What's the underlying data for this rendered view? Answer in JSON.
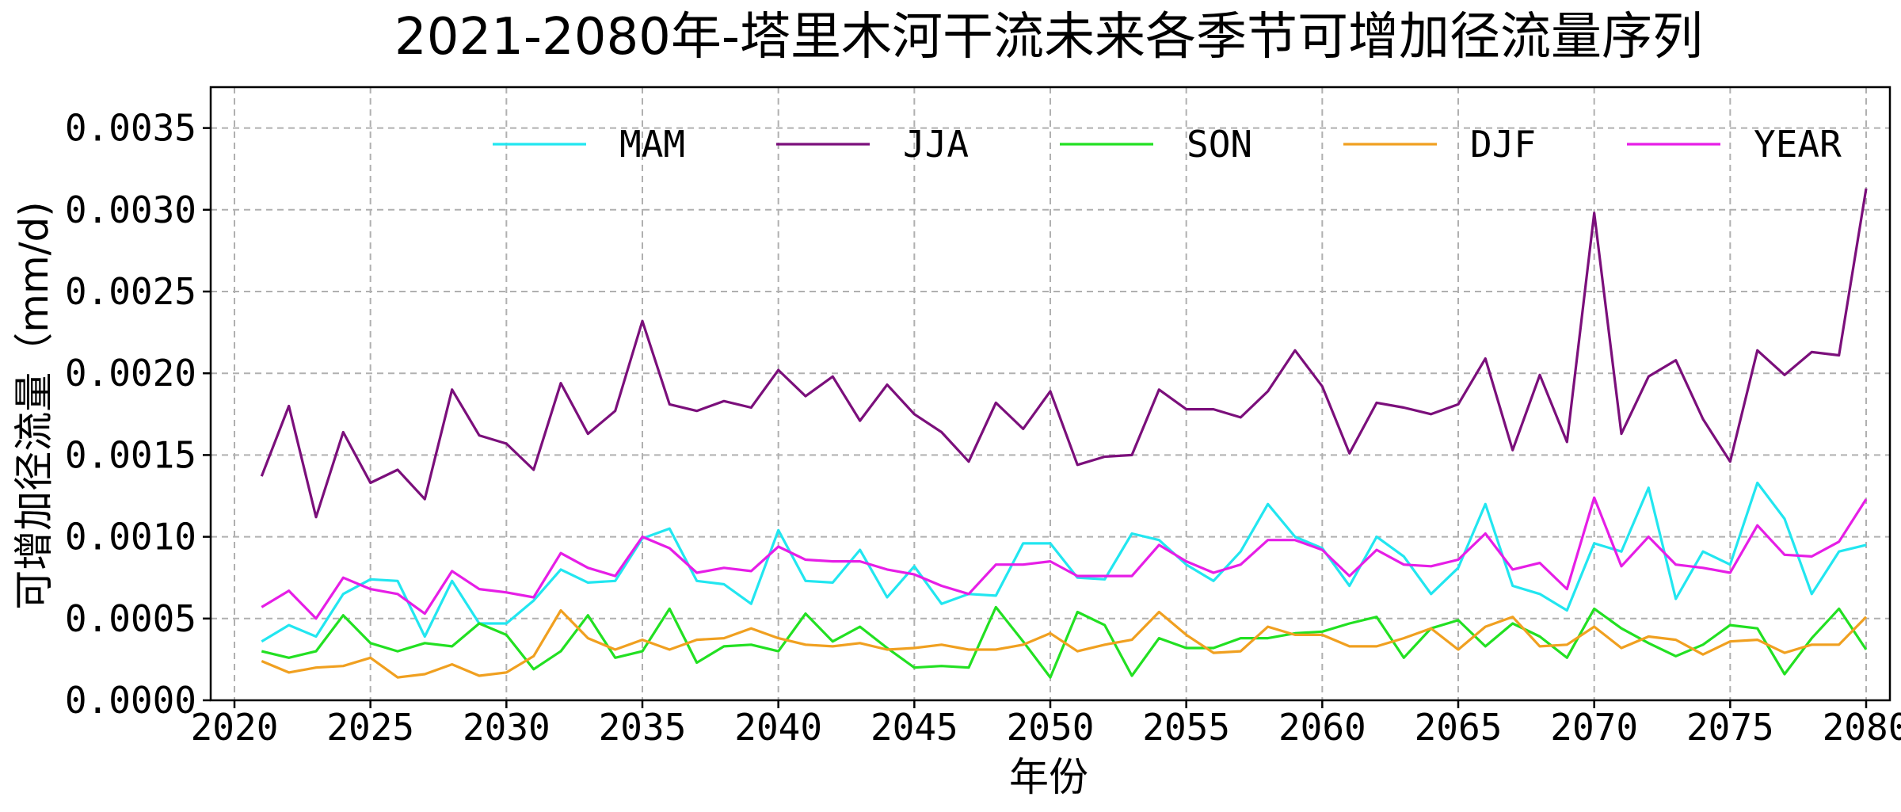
{
  "chart_data": {
    "type": "line",
    "title": "2021-2080年-塔里木河干流未来各季节可增加径流量序列",
    "xlabel": "年份",
    "ylabel": "可增加径流量（mm/d)",
    "xlim": [
      2020,
      2080
    ],
    "ylim": [
      0,
      0.00375
    ],
    "x_ticks": [
      "2020",
      "2025",
      "2030",
      "2035",
      "2040",
      "2045",
      "2050",
      "2055",
      "2060",
      "2065",
      "2070",
      "2075",
      "2080"
    ],
    "y_ticks": [
      "0.0000",
      "0.0005",
      "0.0010",
      "0.0015",
      "0.0020",
      "0.0025",
      "0.0030",
      "0.0035"
    ],
    "grid": true,
    "legend_position": "top",
    "x": [
      2021,
      2022,
      2023,
      2024,
      2025,
      2026,
      2027,
      2028,
      2029,
      2030,
      2031,
      2032,
      2033,
      2034,
      2035,
      2036,
      2037,
      2038,
      2039,
      2040,
      2041,
      2042,
      2043,
      2044,
      2045,
      2046,
      2047,
      2048,
      2049,
      2050,
      2051,
      2052,
      2053,
      2054,
      2055,
      2056,
      2057,
      2058,
      2059,
      2060,
      2061,
      2062,
      2063,
      2064,
      2065,
      2066,
      2067,
      2068,
      2069,
      2070,
      2071,
      2072,
      2073,
      2074,
      2075,
      2076,
      2077,
      2078,
      2079,
      2080
    ],
    "series": [
      {
        "name": "MAM",
        "color": "#22e6f0",
        "values": [
          0.00036,
          0.00046,
          0.00039,
          0.00065,
          0.00074,
          0.00073,
          0.00039,
          0.00073,
          0.00047,
          0.00047,
          0.00061,
          0.0008,
          0.00072,
          0.00073,
          0.00099,
          0.00105,
          0.00073,
          0.00071,
          0.00059,
          0.00104,
          0.00073,
          0.00072,
          0.00092,
          0.00063,
          0.00082,
          0.00059,
          0.00065,
          0.00064,
          0.00096,
          0.00096,
          0.00075,
          0.00074,
          0.00102,
          0.00098,
          0.00083,
          0.00073,
          0.00091,
          0.0012,
          0.001,
          0.00093,
          0.0007,
          0.001,
          0.00088,
          0.00065,
          0.00081,
          0.0012,
          0.0007,
          0.00065,
          0.00055,
          0.00096,
          0.00091,
          0.0013,
          0.00062,
          0.00091,
          0.00083,
          0.00133,
          0.00111,
          0.00065,
          0.00091,
          0.00095
        ]
      },
      {
        "name": "JJA",
        "color": "#7b0f7b",
        "values": [
          0.00137,
          0.0018,
          0.00112,
          0.00164,
          0.00133,
          0.00141,
          0.00123,
          0.0019,
          0.00162,
          0.00157,
          0.00141,
          0.00194,
          0.00163,
          0.00177,
          0.00232,
          0.00181,
          0.00177,
          0.00183,
          0.00179,
          0.00202,
          0.00186,
          0.00198,
          0.00171,
          0.00193,
          0.00175,
          0.00164,
          0.00146,
          0.00182,
          0.00166,
          0.00189,
          0.00144,
          0.00149,
          0.0015,
          0.0019,
          0.00178,
          0.00178,
          0.00173,
          0.00189,
          0.00214,
          0.00192,
          0.00151,
          0.00182,
          0.00179,
          0.00175,
          0.00181,
          0.00209,
          0.00153,
          0.00199,
          0.00158,
          0.00298,
          0.00163,
          0.00198,
          0.00208,
          0.00172,
          0.00146,
          0.00214,
          0.00199,
          0.00213,
          0.00211,
          0.00313
        ]
      },
      {
        "name": "SON",
        "color": "#22e022",
        "values": [
          0.0003,
          0.00026,
          0.0003,
          0.00052,
          0.00035,
          0.0003,
          0.00035,
          0.00033,
          0.00047,
          0.0004,
          0.00019,
          0.0003,
          0.00052,
          0.00026,
          0.0003,
          0.00056,
          0.00023,
          0.00033,
          0.00034,
          0.0003,
          0.00053,
          0.00036,
          0.00045,
          0.00032,
          0.0002,
          0.00021,
          0.0002,
          0.00057,
          0.00036,
          0.00014,
          0.00054,
          0.00046,
          0.00015,
          0.00038,
          0.00032,
          0.00032,
          0.00038,
          0.00038,
          0.00041,
          0.00042,
          0.00047,
          0.00051,
          0.00026,
          0.00044,
          0.00049,
          0.00033,
          0.00047,
          0.00039,
          0.00026,
          0.00056,
          0.00044,
          0.00035,
          0.00027,
          0.00034,
          0.00046,
          0.00044,
          0.00016,
          0.00038,
          0.00056,
          0.00031
        ]
      },
      {
        "name": "DJF",
        "color": "#f0a020",
        "values": [
          0.00024,
          0.00017,
          0.0002,
          0.00021,
          0.00026,
          0.00014,
          0.00016,
          0.00022,
          0.00015,
          0.00017,
          0.00027,
          0.00055,
          0.00038,
          0.00031,
          0.00037,
          0.00031,
          0.00037,
          0.00038,
          0.00044,
          0.00038,
          0.00034,
          0.00033,
          0.00035,
          0.00031,
          0.00032,
          0.00034,
          0.00031,
          0.00031,
          0.00034,
          0.00041,
          0.0003,
          0.00034,
          0.00037,
          0.00054,
          0.0004,
          0.00029,
          0.0003,
          0.00045,
          0.0004,
          0.0004,
          0.00033,
          0.00033,
          0.00038,
          0.00044,
          0.00031,
          0.00045,
          0.00051,
          0.00033,
          0.00034,
          0.00045,
          0.00032,
          0.00039,
          0.00037,
          0.00028,
          0.00036,
          0.00037,
          0.00029,
          0.00034,
          0.00034,
          0.00051
        ]
      },
      {
        "name": "YEAR",
        "color": "#e61ee6",
        "values": [
          0.00057,
          0.00067,
          0.0005,
          0.00075,
          0.00068,
          0.00065,
          0.00053,
          0.00079,
          0.00068,
          0.00066,
          0.00063,
          0.0009,
          0.00081,
          0.00076,
          0.001,
          0.00093,
          0.00078,
          0.00081,
          0.00079,
          0.00094,
          0.00086,
          0.00085,
          0.00085,
          0.0008,
          0.00077,
          0.0007,
          0.00065,
          0.00083,
          0.00083,
          0.00085,
          0.00076,
          0.00076,
          0.00076,
          0.00095,
          0.00085,
          0.00078,
          0.00083,
          0.00098,
          0.00098,
          0.00092,
          0.00076,
          0.00092,
          0.00083,
          0.00082,
          0.00086,
          0.00102,
          0.0008,
          0.00084,
          0.00068,
          0.00124,
          0.00082,
          0.001,
          0.00083,
          0.00081,
          0.00078,
          0.00107,
          0.00089,
          0.00088,
          0.00097,
          0.00123
        ]
      }
    ]
  }
}
